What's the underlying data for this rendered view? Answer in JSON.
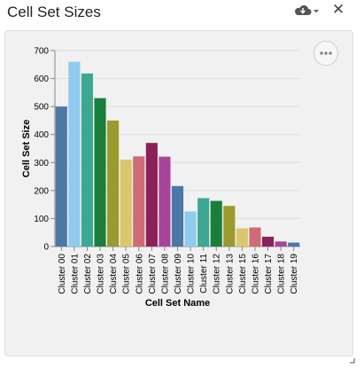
{
  "header": {
    "title": "Cell Set Sizes",
    "icons": [
      "cloud-download-icon",
      "caret-down-icon",
      "close-icon"
    ],
    "close_glyph": "✕"
  },
  "panel": {
    "menu_icon": "more-dots-icon"
  },
  "chart_data": {
    "type": "bar",
    "title": "",
    "xlabel": "Cell Set Name",
    "ylabel": "Cell Set Size",
    "ylim": [
      0,
      700
    ],
    "yticks": [
      0,
      100,
      200,
      300,
      400,
      500,
      600,
      700
    ],
    "grid": true,
    "legend": "none",
    "categories": [
      "Cluster 00",
      "Cluster 01",
      "Cluster 02",
      "Cluster 03",
      "Cluster 04",
      "Cluster 05",
      "Cluster 06",
      "Cluster 07",
      "Cluster 08",
      "Cluster 09",
      "Cluster 10",
      "Cluster 11",
      "Cluster 12",
      "Cluster 13",
      "Cluster 15",
      "Cluster 16",
      "Cluster 17",
      "Cluster 18",
      "Cluster 19"
    ],
    "values": [
      500,
      660,
      618,
      530,
      450,
      310,
      322,
      370,
      321,
      216,
      125,
      173,
      163,
      145,
      65,
      68,
      35,
      18,
      14
    ],
    "colors": [
      "#4c78a8",
      "#8ecbee",
      "#3ca891",
      "#1b7f3b",
      "#9b9a2d",
      "#dcc66b",
      "#cf6b74",
      "#8a2158",
      "#a8449a",
      "#4c78a8",
      "#8ecbee",
      "#3ca891",
      "#1b7f3b",
      "#9b9a2d",
      "#dcc66b",
      "#cf6b74",
      "#8a2158",
      "#a8449a",
      "#4c78a8"
    ]
  }
}
